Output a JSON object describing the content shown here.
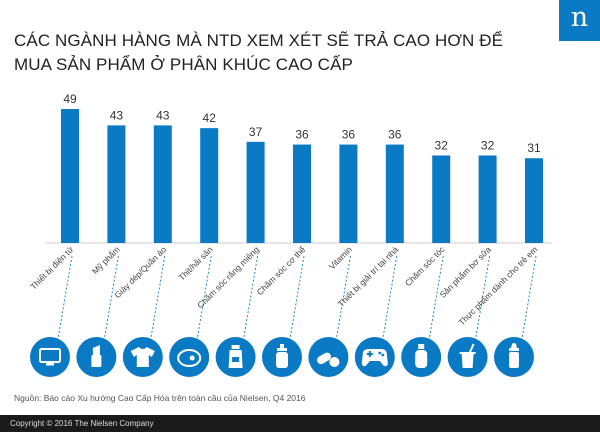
{
  "header": {
    "logo_letter": "n",
    "title_line1": "CÁC NGÀNH HÀNG MÀ NTD XEM XÉT SẼ TRẢ CAO HƠN ĐỂ",
    "title_line2": "MUA SẢN PHẨM Ở PHÂN KHÚC CAO CẤP"
  },
  "chart_data": {
    "type": "bar",
    "categories": [
      "Thiết bị điện tử",
      "Mỹ phẩm",
      "Giày dép/Quần áo",
      "Thịt/hải sản",
      "Chăm sóc răng miệng",
      "Chăm sóc cơ thể",
      "Vitamin",
      "Thiết bị giải trí tại nhà",
      "Chăm sóc tóc",
      "Sản phẩm bơ sữa",
      "Thực phẩm dành cho trẻ em"
    ],
    "values": [
      49,
      43,
      43,
      42,
      37,
      36,
      36,
      36,
      32,
      32,
      31
    ],
    "icons": [
      "tv-icon",
      "lipstick-icon",
      "tshirt-icon",
      "steak-icon",
      "mouthwash-icon",
      "lotion-bottle-icon",
      "pills-icon",
      "gamepad-icon",
      "shampoo-icon",
      "milk-icon",
      "baby-bottle-icon"
    ],
    "ylim": [
      0,
      55
    ],
    "bar_color": "#0a7ac4",
    "icon_color": "#0a7ac4"
  },
  "source_note": "Nguồn: Báo cáo Xu hướng Cao Cấp Hóa trên toàn cầu của Nielsen, Q4 2016",
  "footer": {
    "copyright": "Copyright © 2016 The Nielsen Company"
  }
}
